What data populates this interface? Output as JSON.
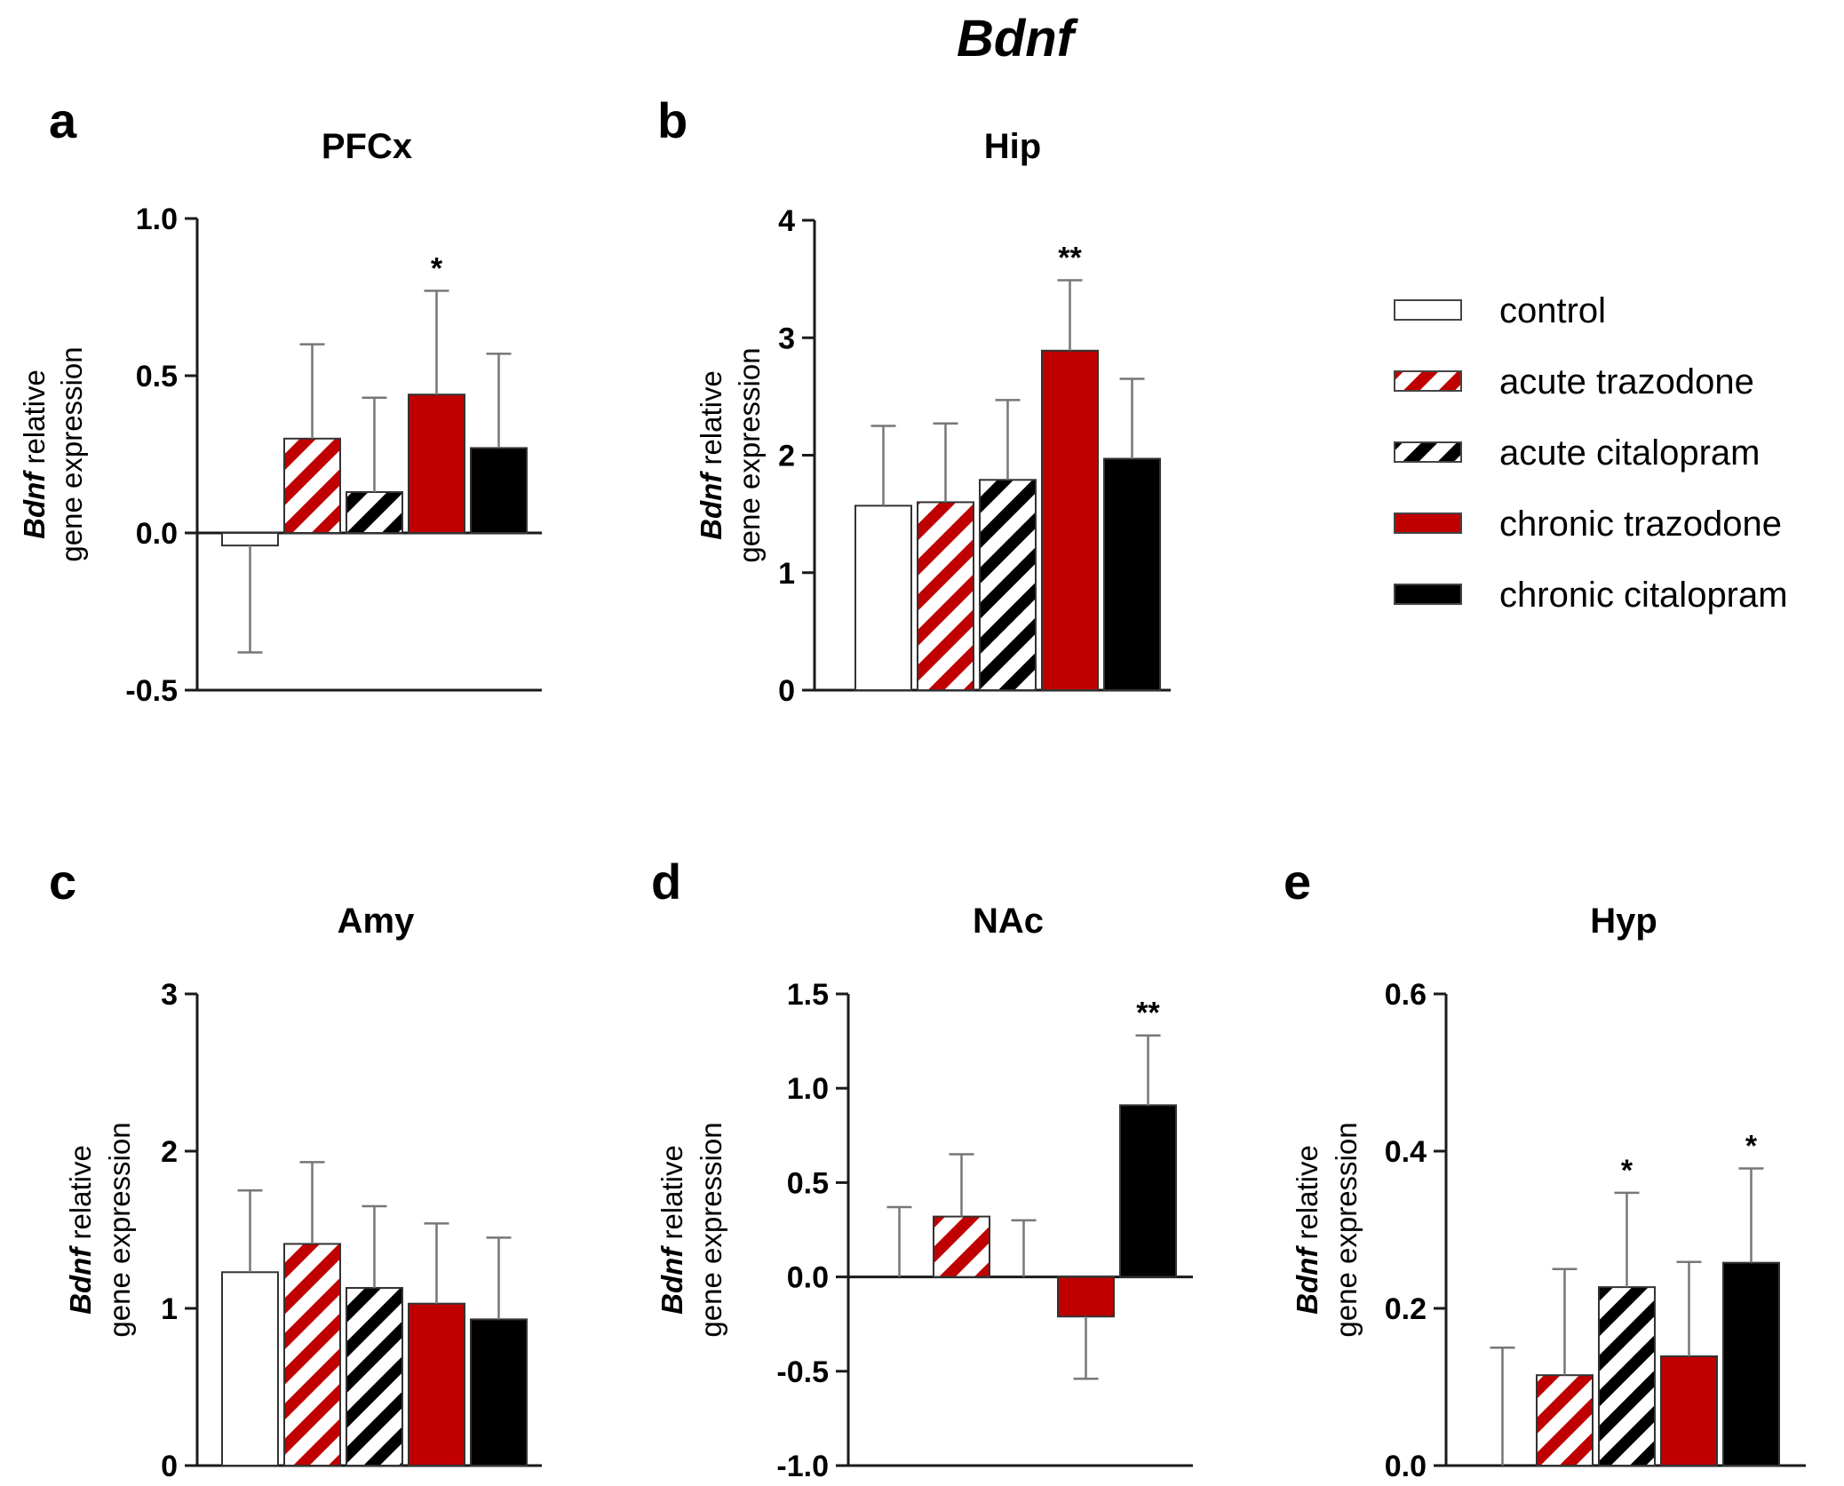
{
  "title": "Bdnf",
  "groups": [
    {
      "name": "control",
      "fill": "#ffffff",
      "stripe": null
    },
    {
      "name": "acute trazodone",
      "fill": "#ffffff",
      "stripe": "#c00000"
    },
    {
      "name": "acute citalopram",
      "fill": "#ffffff",
      "stripe": "#000000"
    },
    {
      "name": "chronic trazodone",
      "fill": "#c00000",
      "stripe": null
    },
    {
      "name": "chronic citalopram",
      "fill": "#000000",
      "stripe": null
    }
  ],
  "chart_data": [
    {
      "panel": "a",
      "type": "bar",
      "title": "PFCx",
      "ylabel_italic": "Bdnf",
      "ylabel_rest": " relative",
      "ylabel_line2": "gene expression",
      "ylim": [
        -0.5,
        1.0
      ],
      "yticks": [
        -0.5,
        0.0,
        0.5,
        1.0
      ],
      "ytick_labels": [
        "-0.5",
        "0.0",
        "0.5",
        "1.0"
      ],
      "categories": [
        "control",
        "acute trazodone",
        "acute citalopram",
        "chronic trazodone",
        "chronic citalopram"
      ],
      "values": [
        -0.04,
        0.3,
        0.13,
        0.44,
        0.27
      ],
      "errors": [
        0.34,
        0.3,
        0.3,
        0.33,
        0.3
      ],
      "significance": [
        "",
        "",
        "",
        "*",
        ""
      ]
    },
    {
      "panel": "b",
      "type": "bar",
      "title": "Hip",
      "ylabel_italic": "Bdnf",
      "ylabel_rest": " relative",
      "ylabel_line2": "gene expression",
      "ylim": [
        0,
        4
      ],
      "yticks": [
        0,
        1,
        2,
        3,
        4
      ],
      "ytick_labels": [
        "0",
        "1",
        "2",
        "3",
        "4"
      ],
      "categories": [
        "control",
        "acute trazodone",
        "acute citalopram",
        "chronic trazodone",
        "chronic citalopram"
      ],
      "values": [
        1.57,
        1.6,
        1.79,
        2.89,
        1.97
      ],
      "errors": [
        0.68,
        0.67,
        0.68,
        0.6,
        0.68
      ],
      "significance": [
        "",
        "",
        "",
        "**",
        ""
      ]
    },
    {
      "panel": "c",
      "type": "bar",
      "title": "Amy",
      "ylabel_italic": "Bdnf",
      "ylabel_rest": " relative",
      "ylabel_line2": "gene expression",
      "ylim": [
        0,
        3
      ],
      "yticks": [
        0,
        1,
        2,
        3
      ],
      "ytick_labels": [
        "0",
        "1",
        "2",
        "3"
      ],
      "categories": [
        "control",
        "acute trazodone",
        "acute citalopram",
        "chronic trazodone",
        "chronic citalopram"
      ],
      "values": [
        1.23,
        1.41,
        1.13,
        1.03,
        0.93
      ],
      "errors": [
        0.52,
        0.52,
        0.52,
        0.51,
        0.52
      ],
      "significance": [
        "",
        "",
        "",
        "",
        ""
      ]
    },
    {
      "panel": "d",
      "type": "bar",
      "title": "NAc",
      "ylabel_italic": "Bdnf",
      "ylabel_rest": " relative",
      "ylabel_line2": "gene expression",
      "ylim": [
        -1.0,
        1.5
      ],
      "yticks": [
        -1.0,
        -0.5,
        0.0,
        0.5,
        1.0,
        1.5
      ],
      "ytick_labels": [
        "-1.0",
        "-0.5",
        "0.0",
        "0.5",
        "1.0",
        "1.5"
      ],
      "categories": [
        "control",
        "acute trazodone",
        "acute citalopram",
        "chronic trazodone",
        "chronic citalopram"
      ],
      "values": [
        0.0,
        0.32,
        0.0,
        -0.21,
        0.91
      ],
      "errors": [
        0.37,
        0.33,
        0.3,
        0.33,
        0.37
      ],
      "significance": [
        "",
        "",
        "",
        "",
        "**"
      ]
    },
    {
      "panel": "e",
      "type": "bar",
      "title": "Hyp",
      "ylabel_italic": "Bdnf",
      "ylabel_rest": " relative",
      "ylabel_line2": "gene expression",
      "ylim": [
        0.0,
        0.6
      ],
      "yticks": [
        0.0,
        0.2,
        0.4,
        0.6
      ],
      "ytick_labels": [
        "0.0",
        "0.2",
        "0.4",
        "0.6"
      ],
      "categories": [
        "control",
        "acute trazodone",
        "acute citalopram",
        "chronic trazodone",
        "chronic citalopram"
      ],
      "values": [
        0.0,
        0.115,
        0.227,
        0.139,
        0.258
      ],
      "errors": [
        0.15,
        0.135,
        0.12,
        0.12,
        0.12
      ],
      "significance": [
        "",
        "",
        "*",
        "",
        "*"
      ]
    }
  ]
}
